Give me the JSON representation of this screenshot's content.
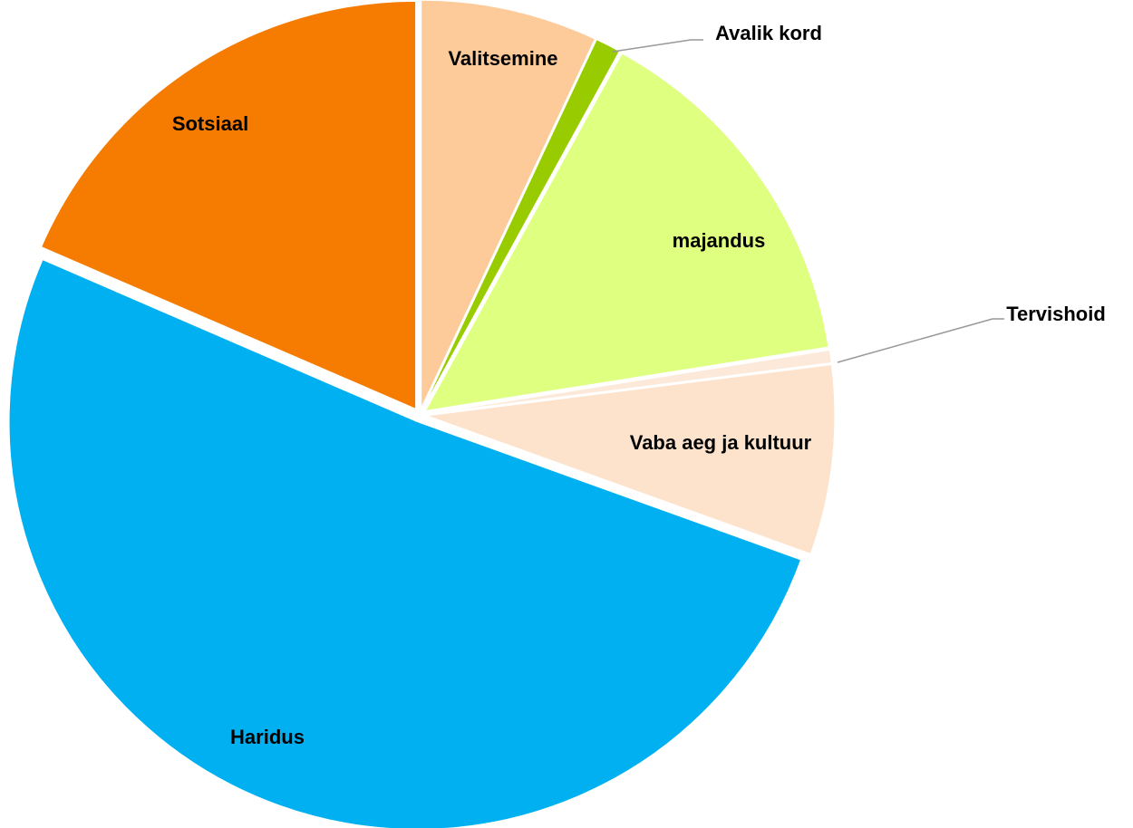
{
  "chart_data": {
    "type": "pie",
    "categories": [
      "Valitsemine",
      "Avalik kord",
      "majandus",
      "Tervishoid",
      "Vaba aeg ja kultuur",
      "Haridus",
      "Sotsiaal"
    ],
    "values": [
      7,
      1,
      14.5,
      0.5,
      7.5,
      51,
      18.5
    ],
    "colors": [
      "#fdca9a",
      "#99cc00",
      "#dfff80",
      "#fde9d9",
      "#fde3cc",
      "#00b0f0",
      "#f57c00"
    ]
  }
}
